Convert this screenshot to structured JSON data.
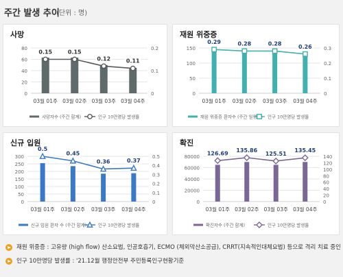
{
  "header": {
    "title": "주간 발생 추이",
    "unit": "(단위 : 명)"
  },
  "chart_data": [
    {
      "type": "bar",
      "title": "사망",
      "categories": [
        "03월 01주",
        "03월 02주",
        "03월 03주",
        "03월 04주"
      ],
      "series": [
        {
          "name": "사망자수 (주간 합계)",
          "kind": "bar",
          "axis": "left",
          "values": [
            63,
            63,
            50,
            45
          ]
        },
        {
          "name": "인구 10만명당 발생률",
          "kind": "line",
          "axis": "right",
          "values": [
            0.15,
            0.15,
            0.12,
            0.11
          ],
          "labels": [
            "0.15",
            "0.15",
            "0.12",
            "0.11"
          ]
        }
      ],
      "ylim": [
        0,
        80
      ],
      "yticks": [
        0,
        20,
        40,
        60,
        80
      ],
      "y2lim": [
        0,
        0.2
      ],
      "y2ticks": [
        "0",
        "0.1",
        "0.2"
      ],
      "colors": {
        "bar": "#5f6b6b",
        "line": "#595959"
      },
      "marker": "circle",
      "legend": "bottom"
    },
    {
      "type": "bar",
      "title": "재원 위중증",
      "categories": [
        "03월 01주",
        "03월 02주",
        "03월 03주",
        "03월 04주"
      ],
      "series": [
        {
          "name": "재원 위중증 환자수 (주간 일평균)",
          "kind": "bar",
          "axis": "left",
          "values": [
            145,
            140,
            138,
            127
          ]
        },
        {
          "name": "인구 10만명당 발생률",
          "kind": "line",
          "axis": "right",
          "values": [
            0.29,
            0.28,
            0.28,
            0.26
          ],
          "labels": [
            "0.29",
            "0.28",
            "0.28",
            "0.26"
          ]
        }
      ],
      "ylim": [
        0,
        150
      ],
      "yticks": [
        0,
        50,
        100,
        150
      ],
      "y2lim": [
        0,
        0.3
      ],
      "y2ticks": [
        "0",
        "0.1",
        "0.2",
        "0.3"
      ],
      "colors": {
        "bar": "#40b0b0",
        "line": "#40b0b0"
      },
      "marker": "square",
      "legend": "bottom"
    },
    {
      "type": "bar",
      "title": "신규 입원",
      "categories": [
        "03월 01주",
        "03월 02주",
        "03월 03주",
        "03월 04주"
      ],
      "series": [
        {
          "name": "신규 입원 환자 수 (주간 합계)",
          "kind": "bar",
          "axis": "left",
          "values": [
            255,
            235,
            185,
            188
          ]
        },
        {
          "name": "인구 10만명당 발생률",
          "kind": "line",
          "axis": "right",
          "values": [
            0.5,
            0.45,
            0.36,
            0.37
          ],
          "labels": [
            "0.5",
            "0.45",
            "0.36",
            "0.37"
          ]
        }
      ],
      "ylim": [
        0,
        300
      ],
      "yticks": [
        0,
        50,
        100,
        150,
        200,
        250,
        300
      ],
      "y2lim": [
        0,
        0.5
      ],
      "y2ticks": [
        "0",
        "0.1",
        "0.2",
        "0.3",
        "0.4",
        "0.5"
      ],
      "colors": {
        "bar": "#3a78c8",
        "line": "#3a78c8"
      },
      "marker": "triangle",
      "legend": "bottom"
    },
    {
      "type": "bar",
      "title": "확진",
      "categories": [
        "03월 01주",
        "03월 02주",
        "03월 03주",
        "03월 04주"
      ],
      "series": [
        {
          "name": "확진자수 (주간 합계)",
          "kind": "bar",
          "axis": "left",
          "values": [
            65000,
            70000,
            65000,
            70000
          ]
        },
        {
          "name": "인구 10만명당 발생률",
          "kind": "line",
          "axis": "right",
          "values": [
            126.69,
            135.86,
            125.51,
            135.45
          ],
          "labels": [
            "126.69",
            "135.86",
            "125.51",
            "135.45"
          ]
        }
      ],
      "ylim": [
        0,
        80000
      ],
      "yticks": [
        0,
        20000,
        40000,
        60000,
        80000
      ],
      "y2lim": [
        0,
        140
      ],
      "y2ticks": [
        "0",
        "20",
        "40",
        "60",
        "80",
        "100",
        "120",
        "140"
      ],
      "colors": {
        "bar": "#7b6698",
        "line": "#7b6698"
      },
      "marker": "diamond",
      "legend": "bottom"
    }
  ],
  "notes": [
    "재원 위중증 : 고유량 (high flow) 산소요법, 인공호흡기, ECMO (체외막산소공급), CRRT(지속적인대체요법) 등으로 격리 치료 중인 환자",
    "인구 10만명당 발생률 : '21.12월 행정안전부 주민등록인구현황기준"
  ]
}
